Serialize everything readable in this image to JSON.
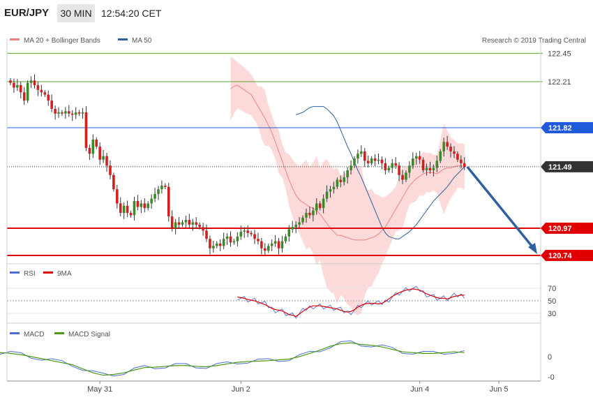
{
  "header": {
    "pair": "EUR/JPY",
    "timeframe": "30 MIN",
    "time": "12:54:20 CET"
  },
  "legend": {
    "main": [
      {
        "label": "MA 20 + Bollinger Bands",
        "color": "#f08080"
      },
      {
        "label": "MA 50",
        "color": "#2e5f9e"
      }
    ],
    "copyright": "Research © 2019 Trading Central",
    "rsi": [
      {
        "label": "RSI",
        "color": "#4a6fd4"
      },
      {
        "label": "9MA",
        "color": "#e00000"
      }
    ],
    "macd": [
      {
        "label": "MACD",
        "color": "#4a6fd4"
      },
      {
        "label": "MACD Signal",
        "color": "#4a9a10"
      }
    ]
  },
  "colors": {
    "up": "#3a8a2a",
    "down": "#d02020",
    "band": "#fbd3d3",
    "ma20": "#f08080",
    "ma50": "#2e5f9e"
  },
  "chart_data": [
    {
      "type": "candlestick",
      "title": "EUR/JPY 30 MIN",
      "ylim": [
        120.6,
        122.55
      ],
      "levels": [
        {
          "value": 122.45,
          "label": "122.45",
          "color": "#5aa02c",
          "style": "thin"
        },
        {
          "value": 122.21,
          "label": "122.21",
          "color": "#5aa02c",
          "style": "thin"
        },
        {
          "value": 121.82,
          "label": "121.82",
          "color": "#1f5bd8",
          "style": "solid",
          "tag": true
        },
        {
          "value": 121.49,
          "label": "121.49",
          "color": "#333333",
          "style": "dotted",
          "tag": true
        },
        {
          "value": 120.97,
          "label": "120.97",
          "color": "#e00000",
          "style": "thick",
          "tag": true
        },
        {
          "value": 120.74,
          "label": "120.74",
          "color": "#e00000",
          "style": "thick",
          "tag": true
        }
      ],
      "x_labels": [
        {
          "i": 26,
          "label": "May 31"
        },
        {
          "i": 67,
          "label": "Jun 2"
        },
        {
          "i": 119,
          "label": "Jun 4"
        },
        {
          "i": 142,
          "label": "Jun 5"
        }
      ],
      "forecast": {
        "from_price": 121.49,
        "to_price": 120.74
      },
      "closes": [
        122.2,
        122.16,
        122.18,
        122.12,
        122.05,
        122.2,
        122.22,
        122.18,
        122.14,
        122.12,
        122.1,
        122.05,
        121.98,
        121.94,
        121.95,
        121.94,
        121.96,
        121.94,
        121.93,
        121.95,
        121.94,
        121.95,
        121.65,
        121.6,
        121.72,
        121.66,
        121.55,
        121.58,
        121.5,
        121.42,
        121.3,
        121.18,
        121.1,
        121.16,
        121.1,
        121.08,
        121.2,
        121.15,
        121.18,
        121.14,
        121.18,
        121.22,
        121.26,
        121.3,
        121.33,
        121.32,
        121.07,
        120.97,
        121.02,
        121.0,
        121.02,
        121.04,
        121.0,
        121.02,
        121.0,
        120.98,
        120.95,
        120.88,
        120.8,
        120.82,
        120.84,
        120.82,
        120.88,
        120.9,
        120.85,
        120.86,
        120.9,
        120.94,
        120.95,
        120.93,
        120.92,
        120.88,
        120.86,
        120.8,
        120.78,
        120.82,
        120.84,
        120.86,
        120.8,
        120.86,
        120.9,
        120.96,
        120.98,
        121.0,
        121.02,
        121.06,
        121.1,
        121.08,
        121.12,
        121.18,
        121.14,
        121.22,
        121.28,
        121.3,
        121.32,
        121.38,
        121.36,
        121.4,
        121.46,
        121.5,
        121.56,
        121.6,
        121.62,
        121.54,
        121.52,
        121.56,
        121.54,
        121.55,
        121.52,
        121.46,
        121.48,
        121.52,
        121.5,
        121.42,
        121.38,
        121.44,
        121.5,
        121.56,
        121.58,
        121.55,
        121.46,
        121.48,
        121.46,
        121.48,
        121.54,
        121.62,
        121.7,
        121.66,
        121.62,
        121.6,
        121.55,
        121.52,
        121.49
      ],
      "ma20": [
        122.15,
        122.17,
        122.18,
        122.16,
        122.14,
        122.12,
        122.1,
        122.05,
        122.0,
        121.95,
        121.9,
        121.84,
        121.78,
        121.7,
        121.62,
        121.54,
        121.46,
        121.38,
        121.31,
        121.25,
        121.21,
        121.19,
        121.17,
        121.15,
        121.14,
        121.12,
        121.09,
        121.05,
        121.01,
        120.97,
        120.94,
        120.91,
        120.91,
        120.9,
        120.89,
        120.88,
        120.87,
        120.87,
        120.87,
        120.87,
        120.88,
        120.89,
        120.9,
        120.92,
        120.95,
        120.98,
        121.03,
        121.08,
        121.13,
        121.18,
        121.23,
        121.28,
        121.33,
        121.36,
        121.39,
        121.41,
        121.43,
        121.44,
        121.44,
        121.44,
        121.43,
        121.45,
        121.47,
        121.48,
        121.48,
        121.49,
        121.5,
        121.5,
        121.49
      ],
      "ma50": [
        121.93,
        121.94,
        121.95,
        121.97,
        121.99,
        122.0,
        122.0,
        122.0,
        122.0,
        121.98,
        121.95,
        121.92,
        121.87,
        121.8,
        121.73,
        121.66,
        121.6,
        121.53,
        121.46,
        121.4,
        121.33,
        121.26,
        121.19,
        121.12,
        121.05,
        120.98,
        120.93,
        120.9,
        120.89,
        120.88,
        120.88,
        120.9,
        120.92,
        120.94,
        120.97,
        121.0,
        121.04,
        121.08,
        121.12,
        121.16,
        121.2,
        121.23,
        121.26,
        121.29,
        121.32,
        121.36,
        121.4,
        121.43,
        121.46,
        121.49
      ]
    },
    {
      "type": "line",
      "title": "RSI",
      "ylim": [
        20,
        80
      ],
      "yticks": [
        70,
        50,
        30
      ],
      "series": [
        {
          "name": "RSI",
          "color": "#4a6fd4"
        },
        {
          "name": "9MA",
          "color": "#e00000"
        }
      ],
      "rsi_9ma": [
        56,
        55,
        54,
        52,
        51,
        50,
        48,
        46,
        44,
        41,
        38,
        36,
        35,
        34,
        31,
        28,
        27,
        25,
        29,
        33,
        37,
        40,
        42,
        42,
        42,
        41,
        40,
        39,
        38,
        37,
        35,
        33,
        32,
        33,
        36,
        40,
        43,
        45,
        46,
        46,
        46,
        45,
        46,
        49,
        53,
        57,
        60,
        63,
        65,
        67,
        68,
        69,
        68,
        67,
        64,
        61,
        59,
        57,
        55,
        54,
        54,
        53,
        55,
        57,
        58,
        59,
        59
      ]
    },
    {
      "type": "line",
      "title": "MACD",
      "ylim": [
        -0.75,
        0.55
      ],
      "yticks": [
        0,
        -0.5
      ],
      "ytick_labels": [
        "0",
        "-0"
      ],
      "series": [
        {
          "name": "MACD",
          "color": "#4a6fd4"
        },
        {
          "name": "MACD Signal",
          "color": "#4a9a10"
        }
      ],
      "macd_signal": [
        0.15,
        0.14,
        0.12,
        0.1,
        0.08,
        0.05,
        0.0,
        -0.05,
        -0.1,
        -0.15,
        -0.2,
        -0.3,
        -0.4,
        -0.46,
        -0.44,
        -0.4,
        -0.33,
        -0.27,
        -0.26,
        -0.24,
        -0.22,
        -0.22,
        -0.24,
        -0.25,
        -0.22,
        -0.18,
        -0.14,
        -0.12,
        -0.11,
        -0.1,
        -0.08,
        -0.06,
        0.0,
        0.08,
        0.16,
        0.26,
        0.32,
        0.34,
        0.3,
        0.28,
        0.24,
        0.18,
        0.12,
        0.1,
        0.08,
        0.08,
        0.1,
        0.12,
        0.1
      ]
    }
  ]
}
